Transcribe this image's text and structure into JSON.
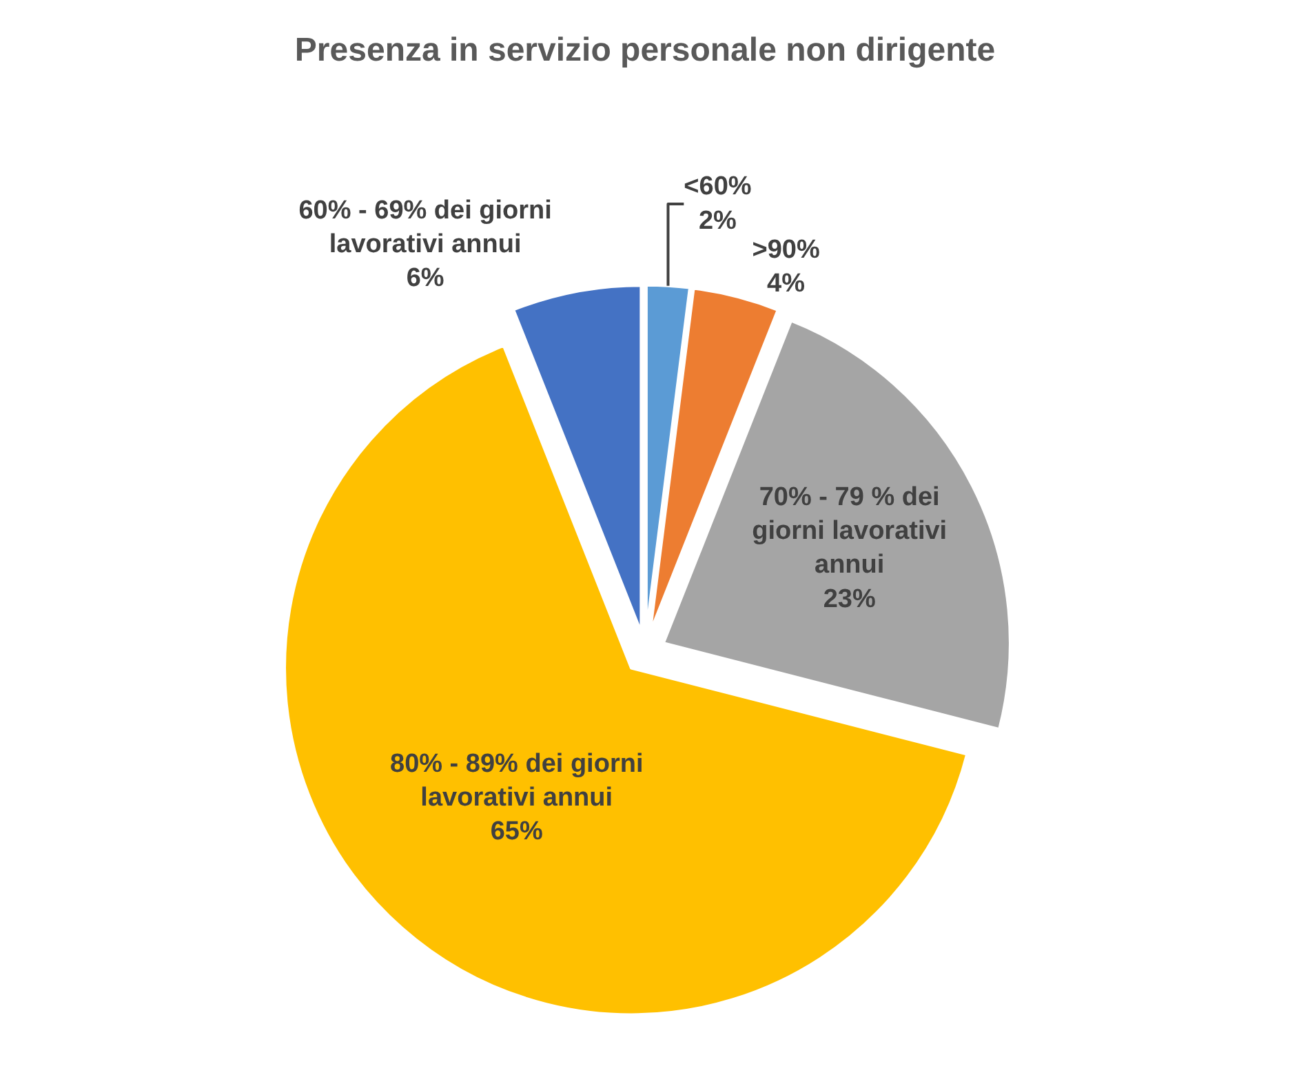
{
  "chart_data": {
    "type": "pie",
    "title": "Presenza in servizio personale non dirigente",
    "categories": [
      "<60%",
      ">90%",
      "70% - 79 % dei giorni lavorativi annui",
      "80% - 89% dei giorni lavorativi annui",
      "60% - 69% dei giorni lavorativi annui"
    ],
    "values": [
      2,
      4,
      23,
      65,
      6
    ],
    "colors": [
      "#5b9bd5",
      "#ed7d31",
      "#a5a5a5",
      "#ffc000",
      "#4472c4"
    ],
    "value_labels": [
      "2%",
      "4%",
      "23%",
      "65%",
      "6%"
    ],
    "legend": false
  }
}
